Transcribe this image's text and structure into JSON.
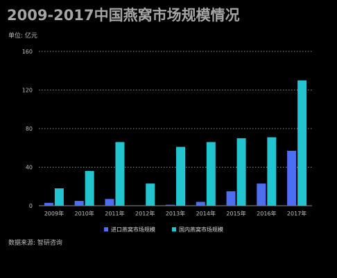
{
  "title": "2009-2017中国燕窝市场规模情况",
  "unit_label": "单位: 亿元",
  "source_label": "数据来源: 智研咨询",
  "colors": {
    "import": "#4e6ef2",
    "domestic": "#22c4d0",
    "grid": "#8c8c8c",
    "axis": "#8c8c8c"
  },
  "chart_data": {
    "type": "bar",
    "categories": [
      "2009年",
      "2010年",
      "2011年",
      "2012年",
      "2013年",
      "2014年",
      "2015年",
      "2016年",
      "2017年"
    ],
    "series": [
      {
        "name": "进口燕窝市场规模",
        "values": [
          3,
          5,
          7,
          0,
          1,
          4,
          15,
          23,
          57
        ]
      },
      {
        "name": "国内燕窝市场规模",
        "values": [
          18,
          36,
          66,
          23,
          61,
          66,
          70,
          71,
          130
        ]
      }
    ],
    "yticks": [
      0,
      40,
      80,
      120,
      160
    ],
    "ylim": [
      0,
      160
    ],
    "grid": true,
    "legend_position": "bottom"
  }
}
